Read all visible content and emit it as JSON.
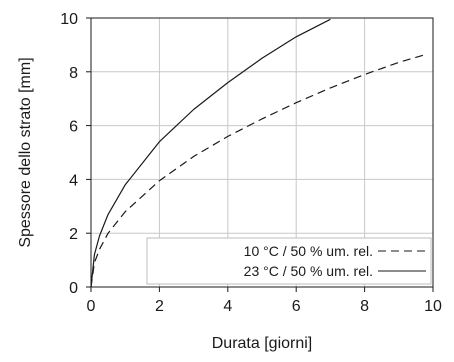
{
  "chart_data": {
    "type": "line",
    "title": "",
    "xlabel": "Durata [giorni]",
    "ylabel": "Spessore dello strato [mm]",
    "xlim": [
      0,
      10
    ],
    "ylim": [
      0,
      10
    ],
    "xticks": [
      "0",
      "2",
      "4",
      "6",
      "8",
      "10"
    ],
    "yticks": [
      "0",
      "2",
      "4",
      "6",
      "8",
      "10"
    ],
    "grid": true,
    "legend_position": "bottom-right",
    "series": [
      {
        "name": "10 °C / 50 % um. rel.",
        "style": "dashed",
        "color": "#1a1a1a",
        "x": [
          0,
          0.1,
          0.25,
          0.5,
          1,
          2,
          3,
          4,
          5,
          6,
          7,
          8,
          9,
          9.8
        ],
        "y": [
          0,
          0.9,
          1.4,
          2.0,
          2.8,
          3.95,
          4.85,
          5.6,
          6.25,
          6.85,
          7.4,
          7.9,
          8.35,
          8.65
        ]
      },
      {
        "name": "23 °C / 50 % um. rel.",
        "style": "solid",
        "color": "#1a1a1a",
        "x": [
          0,
          0.1,
          0.25,
          0.5,
          1,
          2,
          3,
          4,
          5,
          6,
          7
        ],
        "y": [
          0,
          1.2,
          1.9,
          2.7,
          3.8,
          5.4,
          6.6,
          7.6,
          8.5,
          9.3,
          9.95
        ]
      }
    ]
  }
}
